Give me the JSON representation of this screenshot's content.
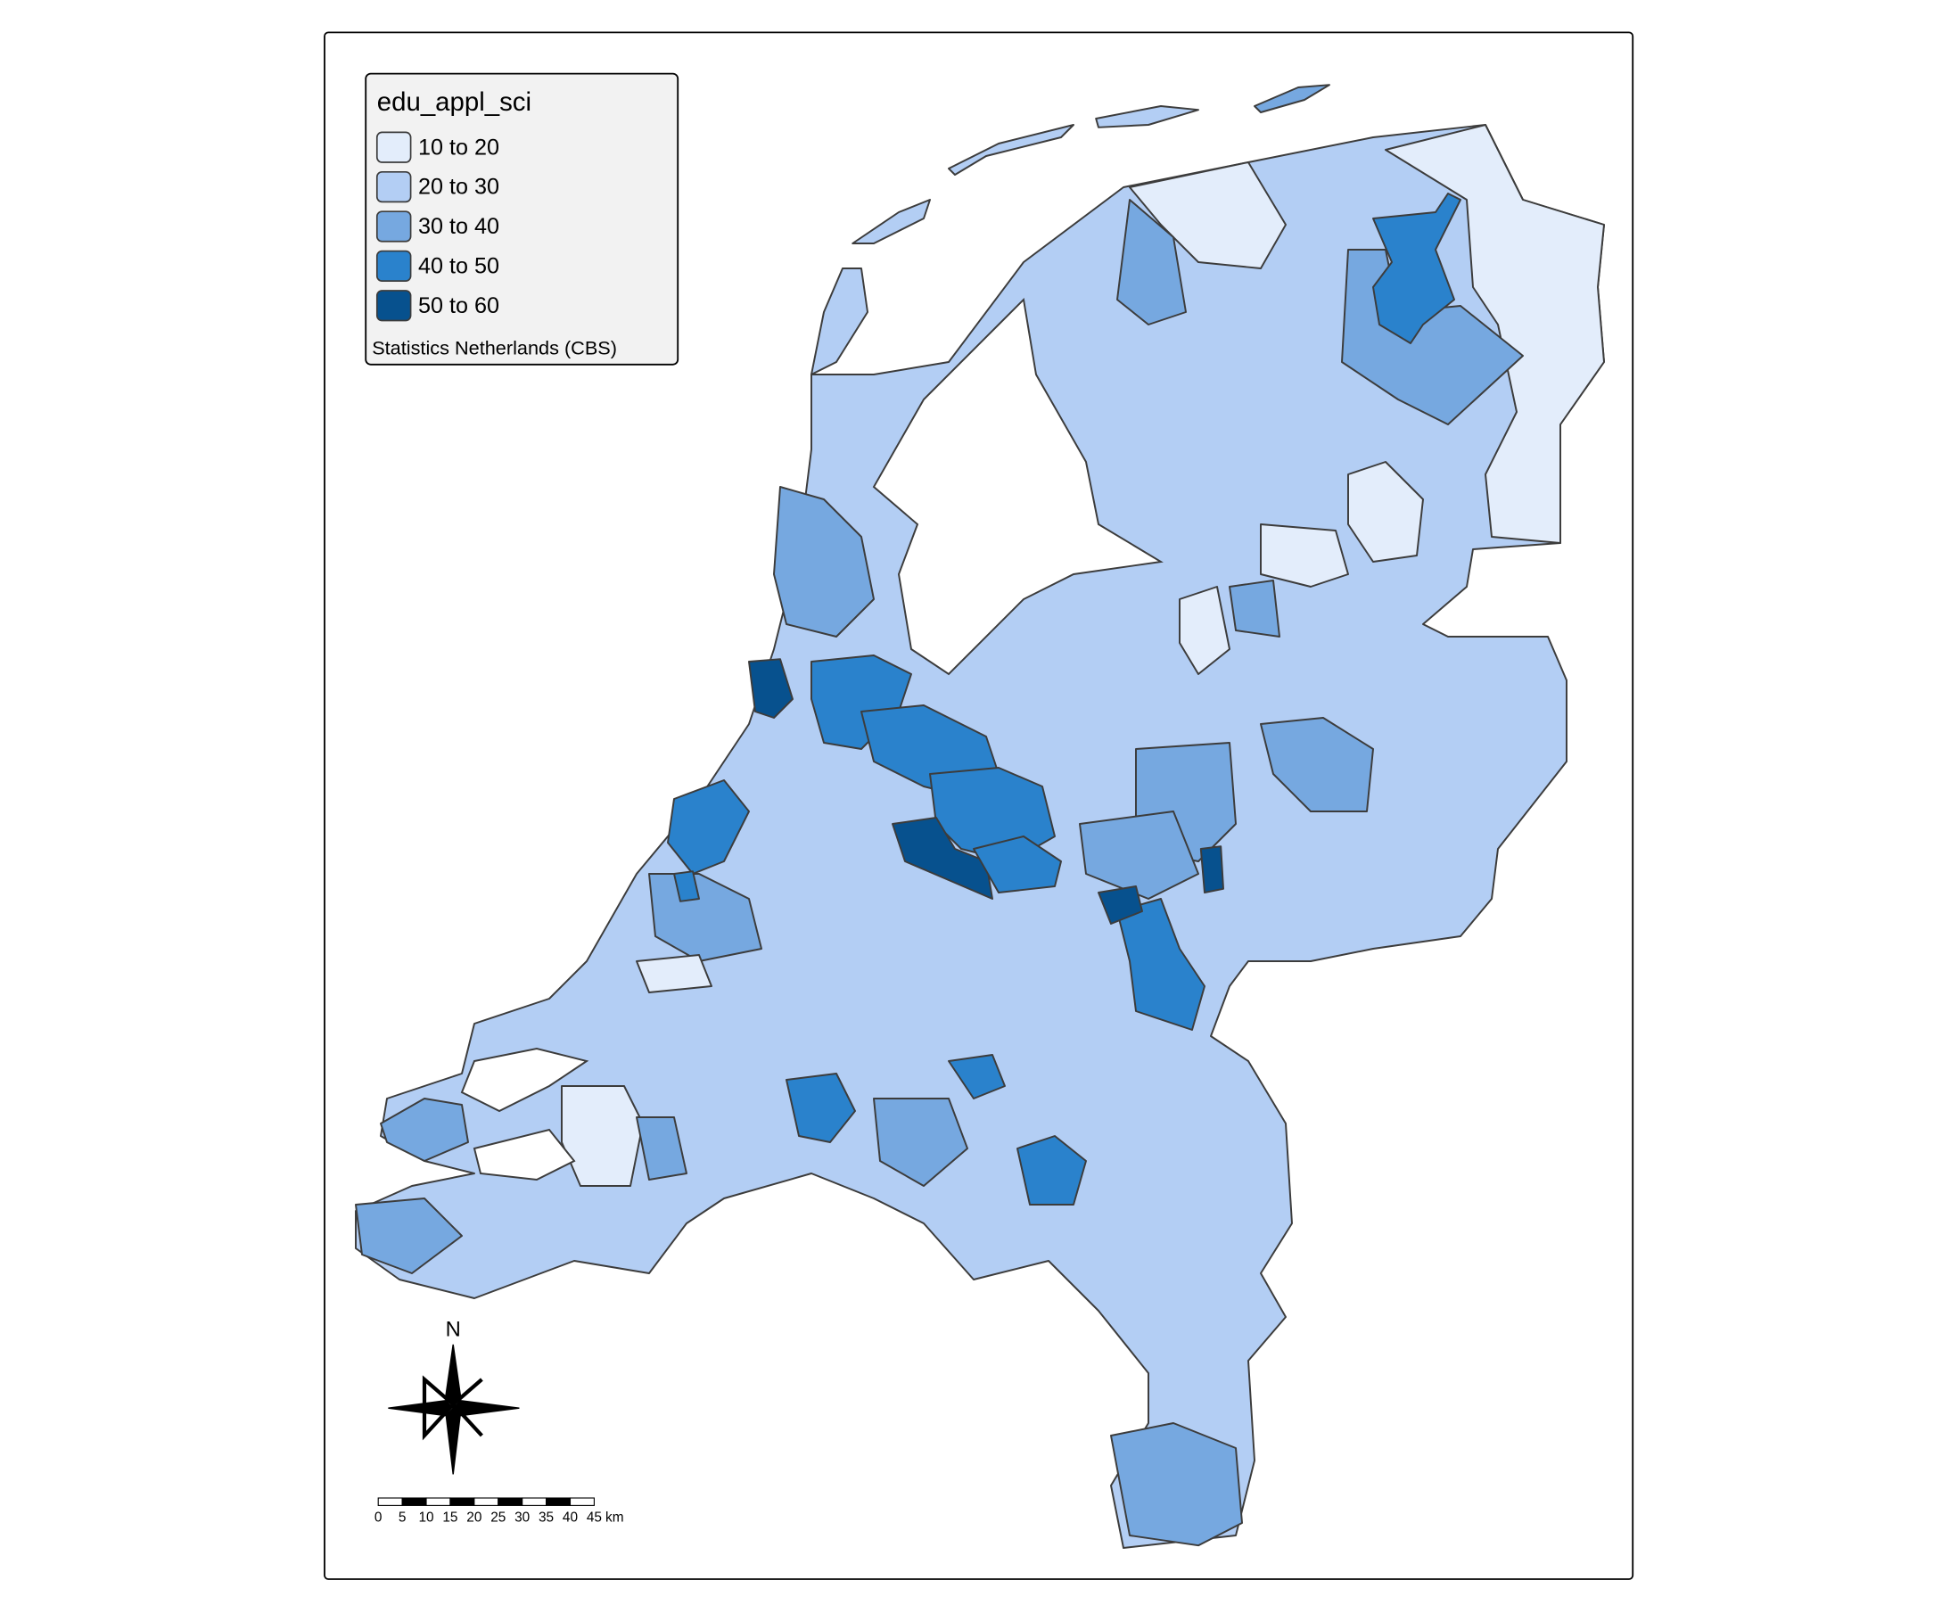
{
  "legend": {
    "title": "edu_appl_sci",
    "items": [
      {
        "label": "10 to 20",
        "color": "#e3edfb"
      },
      {
        "label": "20 to 30",
        "color": "#b3cef4"
      },
      {
        "label": "30 to 40",
        "color": "#76a8e0"
      },
      {
        "label": "40 to 50",
        "color": "#2a82cc"
      },
      {
        "label": "50 to 60",
        "color": "#07518e"
      }
    ],
    "credits": "Statistics Netherlands (CBS)"
  },
  "compass": {
    "label": "N"
  },
  "scale_bar": {
    "ticks": [
      0,
      5,
      10,
      15,
      20,
      25,
      30,
      35,
      40,
      45
    ],
    "unit": "km"
  }
}
